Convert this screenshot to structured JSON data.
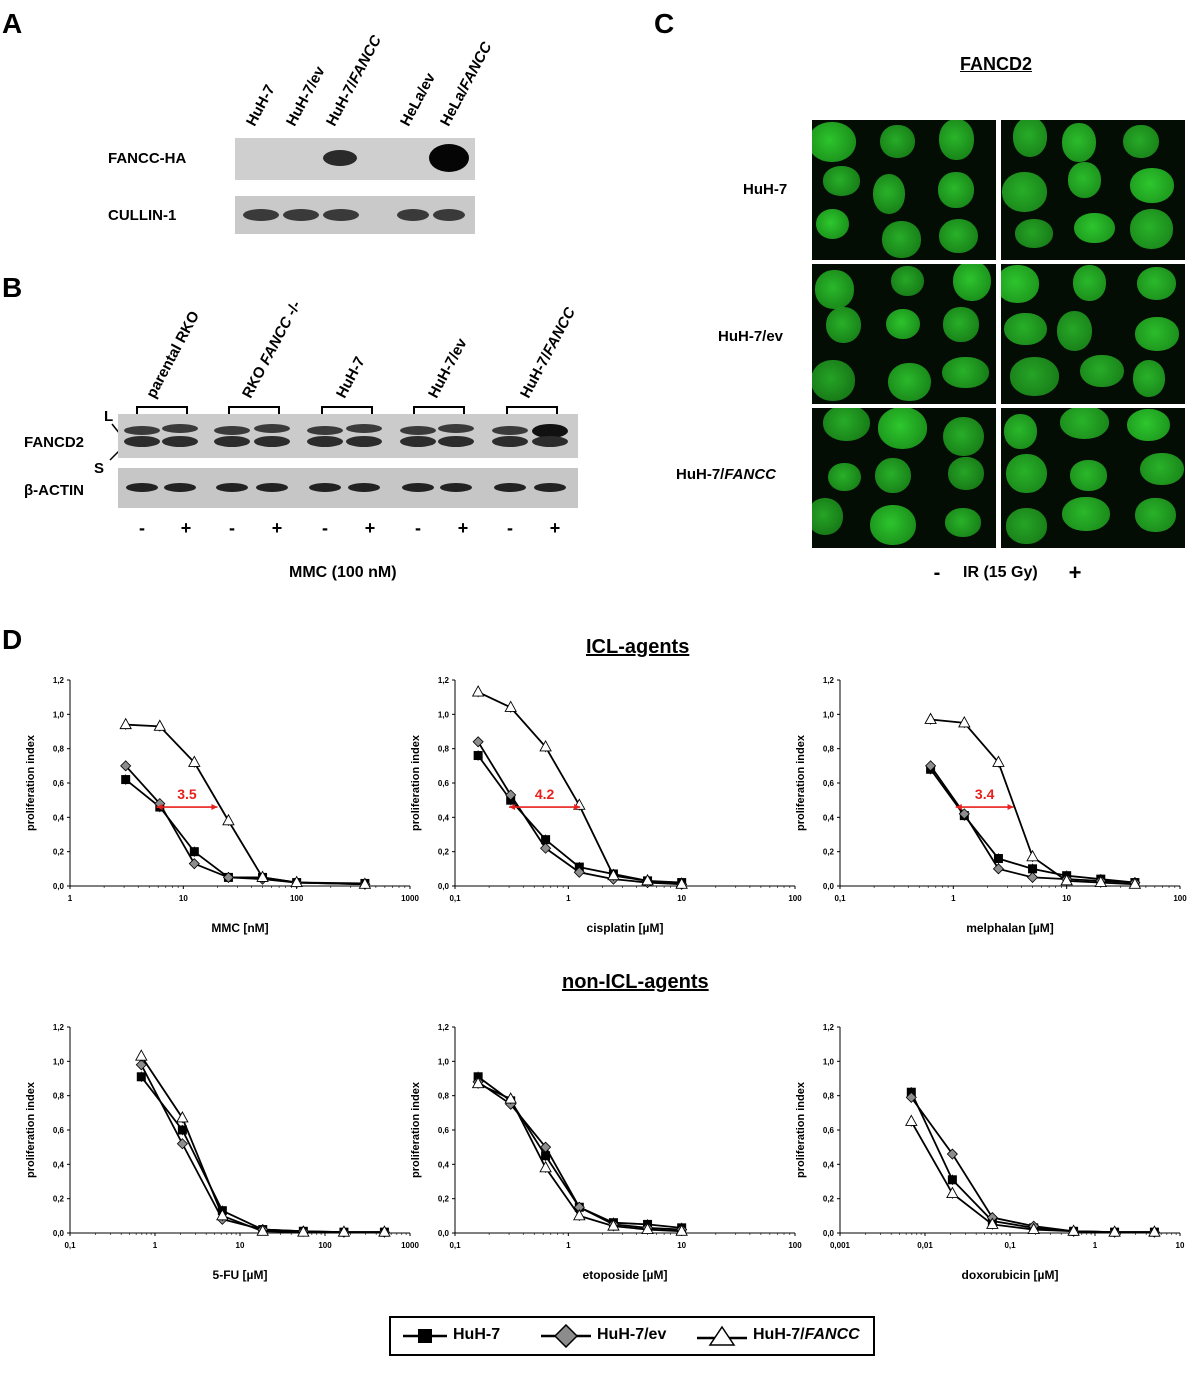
{
  "panelA": {
    "letter": "A",
    "lanes": [
      "HuH-7",
      "HuH-7/ev",
      "HuH-7/FANCC",
      "HeLa/ev",
      "HeLa/FANCC"
    ],
    "rows": [
      "FANCC-HA",
      "CULLIN-1"
    ]
  },
  "panelB": {
    "letter": "B",
    "groups": [
      "parental RKO",
      "RKO FANCC -/-",
      "HuH-7",
      "HuH-7/ev",
      "HuH-7/FANCC"
    ],
    "row_fancd2": "FANCD2",
    "row_actin": "β-ACTIN",
    "marker_L": "L",
    "marker_S": "S",
    "treatment_signs": [
      "-",
      "+",
      "-",
      "+",
      "-",
      "+",
      "-",
      "+",
      "-",
      "+"
    ],
    "treatment_label": "MMC (100 nM)"
  },
  "panelC": {
    "letter": "C",
    "title": "FANCD2",
    "rows": [
      "HuH-7",
      "HuH-7/ev",
      "HuH-7/FANCC"
    ],
    "minus": "-",
    "plus": "+",
    "treatment_label": "IR (15 Gy)",
    "nuclear_color": "#2ec82e"
  },
  "panelD": {
    "letter": "D",
    "icl_title": "ICL-agents",
    "non_icl_title": "non-ICL-agents",
    "ylabel": "proliferation index",
    "legend": [
      "HuH-7",
      "HuH-7/ev",
      "HuH-7/FANCC"
    ],
    "fold_color": "#e8201c"
  },
  "chart_data": [
    {
      "type": "line",
      "xlabel": "MMC [nM]",
      "ylabel": "proliferation index",
      "xscale": "log",
      "xlim": [
        1,
        1000
      ],
      "ylim": [
        0,
        1.2
      ],
      "xticks": [
        "1",
        "10",
        "100",
        "1000"
      ],
      "yticks": [
        "0,0",
        "0,2",
        "0,4",
        "0,6",
        "0,8",
        "1,0",
        "1,2"
      ],
      "x": [
        3.1,
        6.2,
        12.5,
        25,
        50,
        100,
        400
      ],
      "series": [
        {
          "name": "HuH-7",
          "values": [
            0.62,
            0.46,
            0.2,
            0.05,
            0.05,
            0.02,
            0.015
          ]
        },
        {
          "name": "HuH-7/ev",
          "values": [
            0.7,
            0.48,
            0.13,
            0.05,
            0.04,
            0.02,
            0.01
          ]
        },
        {
          "name": "HuH-7/FANCC",
          "values": [
            0.94,
            0.93,
            0.72,
            0.38,
            0.05,
            0.02,
            0.01
          ]
        }
      ],
      "annotation": {
        "text": "3.5",
        "x1": 5.8,
        "x2": 20,
        "y": 0.46
      }
    },
    {
      "type": "line",
      "xlabel": "cisplatin [µM]",
      "ylabel": "proliferation index",
      "xscale": "log",
      "xlim": [
        0.1,
        100
      ],
      "ylim": [
        0,
        1.2
      ],
      "xticks": [
        "0,1",
        "1",
        "10",
        "100"
      ],
      "yticks": [
        "0,0",
        "0,2",
        "0,4",
        "0,6",
        "0,8",
        "1,0",
        "1,2"
      ],
      "x": [
        0.16,
        0.31,
        0.63,
        1.25,
        2.5,
        5,
        10
      ],
      "series": [
        {
          "name": "HuH-7",
          "values": [
            0.76,
            0.5,
            0.27,
            0.11,
            0.07,
            0.03,
            0.02
          ]
        },
        {
          "name": "HuH-7/ev",
          "values": [
            0.84,
            0.53,
            0.22,
            0.08,
            0.04,
            0.02,
            0.01
          ]
        },
        {
          "name": "HuH-7/FANCC",
          "values": [
            1.13,
            1.04,
            0.81,
            0.47,
            0.06,
            0.03,
            0.01
          ]
        }
      ],
      "annotation": {
        "text": "4.2",
        "x1": 0.3,
        "x2": 1.27,
        "y": 0.46
      }
    },
    {
      "type": "line",
      "xlabel": "melphalan [µM]",
      "ylabel": "proliferation index",
      "xscale": "log",
      "xlim": [
        0.1,
        100
      ],
      "ylim": [
        0,
        1.2
      ],
      "xticks": [
        "0,1",
        "1",
        "10",
        "100"
      ],
      "yticks": [
        "0,0",
        "0,2",
        "0,4",
        "0,6",
        "0,8",
        "1,0",
        "1,2"
      ],
      "x": [
        0.63,
        1.25,
        2.5,
        5,
        10,
        20,
        40
      ],
      "series": [
        {
          "name": "HuH-7",
          "values": [
            0.68,
            0.41,
            0.16,
            0.1,
            0.06,
            0.04,
            0.02
          ]
        },
        {
          "name": "HuH-7/ev",
          "values": [
            0.7,
            0.42,
            0.1,
            0.05,
            0.04,
            0.03,
            0.02
          ]
        },
        {
          "name": "HuH-7/FANCC",
          "values": [
            0.97,
            0.95,
            0.72,
            0.17,
            0.03,
            0.02,
            0.01
          ]
        }
      ],
      "annotation": {
        "text": "3.4",
        "x1": 1.05,
        "x2": 3.4,
        "y": 0.46
      }
    },
    {
      "type": "line",
      "xlabel": "5-FU [µM]",
      "ylabel": "proliferation index",
      "xscale": "log",
      "xlim": [
        0.1,
        1000
      ],
      "ylim": [
        0,
        1.2
      ],
      "xticks": [
        "0,1",
        "1",
        "10",
        "100",
        "1000"
      ],
      "yticks": [
        "0,0",
        "0,2",
        "0,4",
        "0,6",
        "0,8",
        "1,0",
        "1,2"
      ],
      "x": [
        0.69,
        2.1,
        6.2,
        18.5,
        55.6,
        167,
        500
      ],
      "series": [
        {
          "name": "HuH-7",
          "values": [
            0.91,
            0.6,
            0.13,
            0.02,
            0.01,
            0.005,
            0.005
          ]
        },
        {
          "name": "HuH-7/ev",
          "values": [
            0.98,
            0.52,
            0.08,
            0.02,
            0.01,
            0.005,
            0.005
          ]
        },
        {
          "name": "HuH-7/FANCC",
          "values": [
            1.03,
            0.67,
            0.1,
            0.01,
            0.005,
            0.005,
            0.005
          ]
        }
      ]
    },
    {
      "type": "line",
      "xlabel": "etoposide [µM]",
      "ylabel": "proliferation index",
      "xscale": "log",
      "xlim": [
        0.1,
        100
      ],
      "ylim": [
        0,
        1.2
      ],
      "xticks": [
        "0,1",
        "1",
        "10",
        "100"
      ],
      "yticks": [
        "0,0",
        "0,2",
        "0,4",
        "0,6",
        "0,8",
        "1,0",
        "1,2"
      ],
      "x": [
        0.16,
        0.31,
        0.63,
        1.25,
        2.5,
        5,
        10
      ],
      "series": [
        {
          "name": "HuH-7",
          "values": [
            0.91,
            0.77,
            0.45,
            0.15,
            0.06,
            0.05,
            0.03
          ]
        },
        {
          "name": "HuH-7/ev",
          "values": [
            0.88,
            0.75,
            0.5,
            0.15,
            0.05,
            0.03,
            0.02
          ]
        },
        {
          "name": "HuH-7/FANCC",
          "values": [
            0.87,
            0.78,
            0.38,
            0.1,
            0.04,
            0.02,
            0.01
          ]
        }
      ]
    },
    {
      "type": "line",
      "xlabel": "doxorubicin [µM]",
      "ylabel": "proliferation index",
      "xscale": "log",
      "xlim": [
        0.001,
        10
      ],
      "ylim": [
        0,
        1.2
      ],
      "xticks": [
        "0,001",
        "0,01",
        "0,1",
        "1",
        "10"
      ],
      "yticks": [
        "0,0",
        "0,2",
        "0,4",
        "0,6",
        "0,8",
        "1,0",
        "1,2"
      ],
      "x": [
        0.0069,
        0.021,
        0.062,
        0.19,
        0.56,
        1.7,
        5
      ],
      "series": [
        {
          "name": "HuH-7",
          "values": [
            0.82,
            0.31,
            0.07,
            0.03,
            0.01,
            0.005,
            0.005
          ]
        },
        {
          "name": "HuH-7/ev",
          "values": [
            0.79,
            0.46,
            0.09,
            0.04,
            0.01,
            0.005,
            0.005
          ]
        },
        {
          "name": "HuH-7/FANCC",
          "values": [
            0.65,
            0.23,
            0.05,
            0.02,
            0.01,
            0.005,
            0.005
          ]
        }
      ]
    }
  ]
}
